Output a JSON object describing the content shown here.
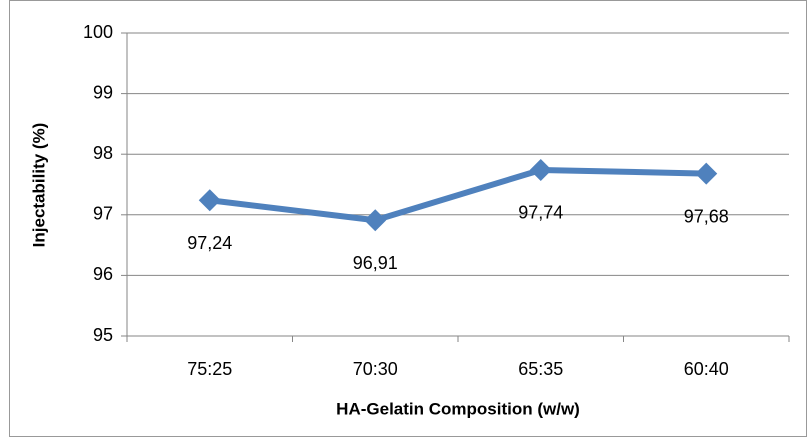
{
  "chart_data": {
    "type": "line",
    "categories": [
      "75:25",
      "70:30",
      "65:35",
      "60:40"
    ],
    "series": [
      {
        "name": "Injectability",
        "color": "#4f81bd",
        "values": [
          97.24,
          96.91,
          97.74,
          97.68
        ],
        "value_labels": [
          "97,24",
          "96,91",
          "97,74",
          "97,68"
        ]
      }
    ],
    "x_label": "HA-Gelatin Composition (w/w)",
    "y_label": "Injectability (%)",
    "ylim": [
      95,
      100
    ],
    "yticks": [
      95,
      96,
      97,
      98,
      99,
      100
    ],
    "grid": true
  }
}
